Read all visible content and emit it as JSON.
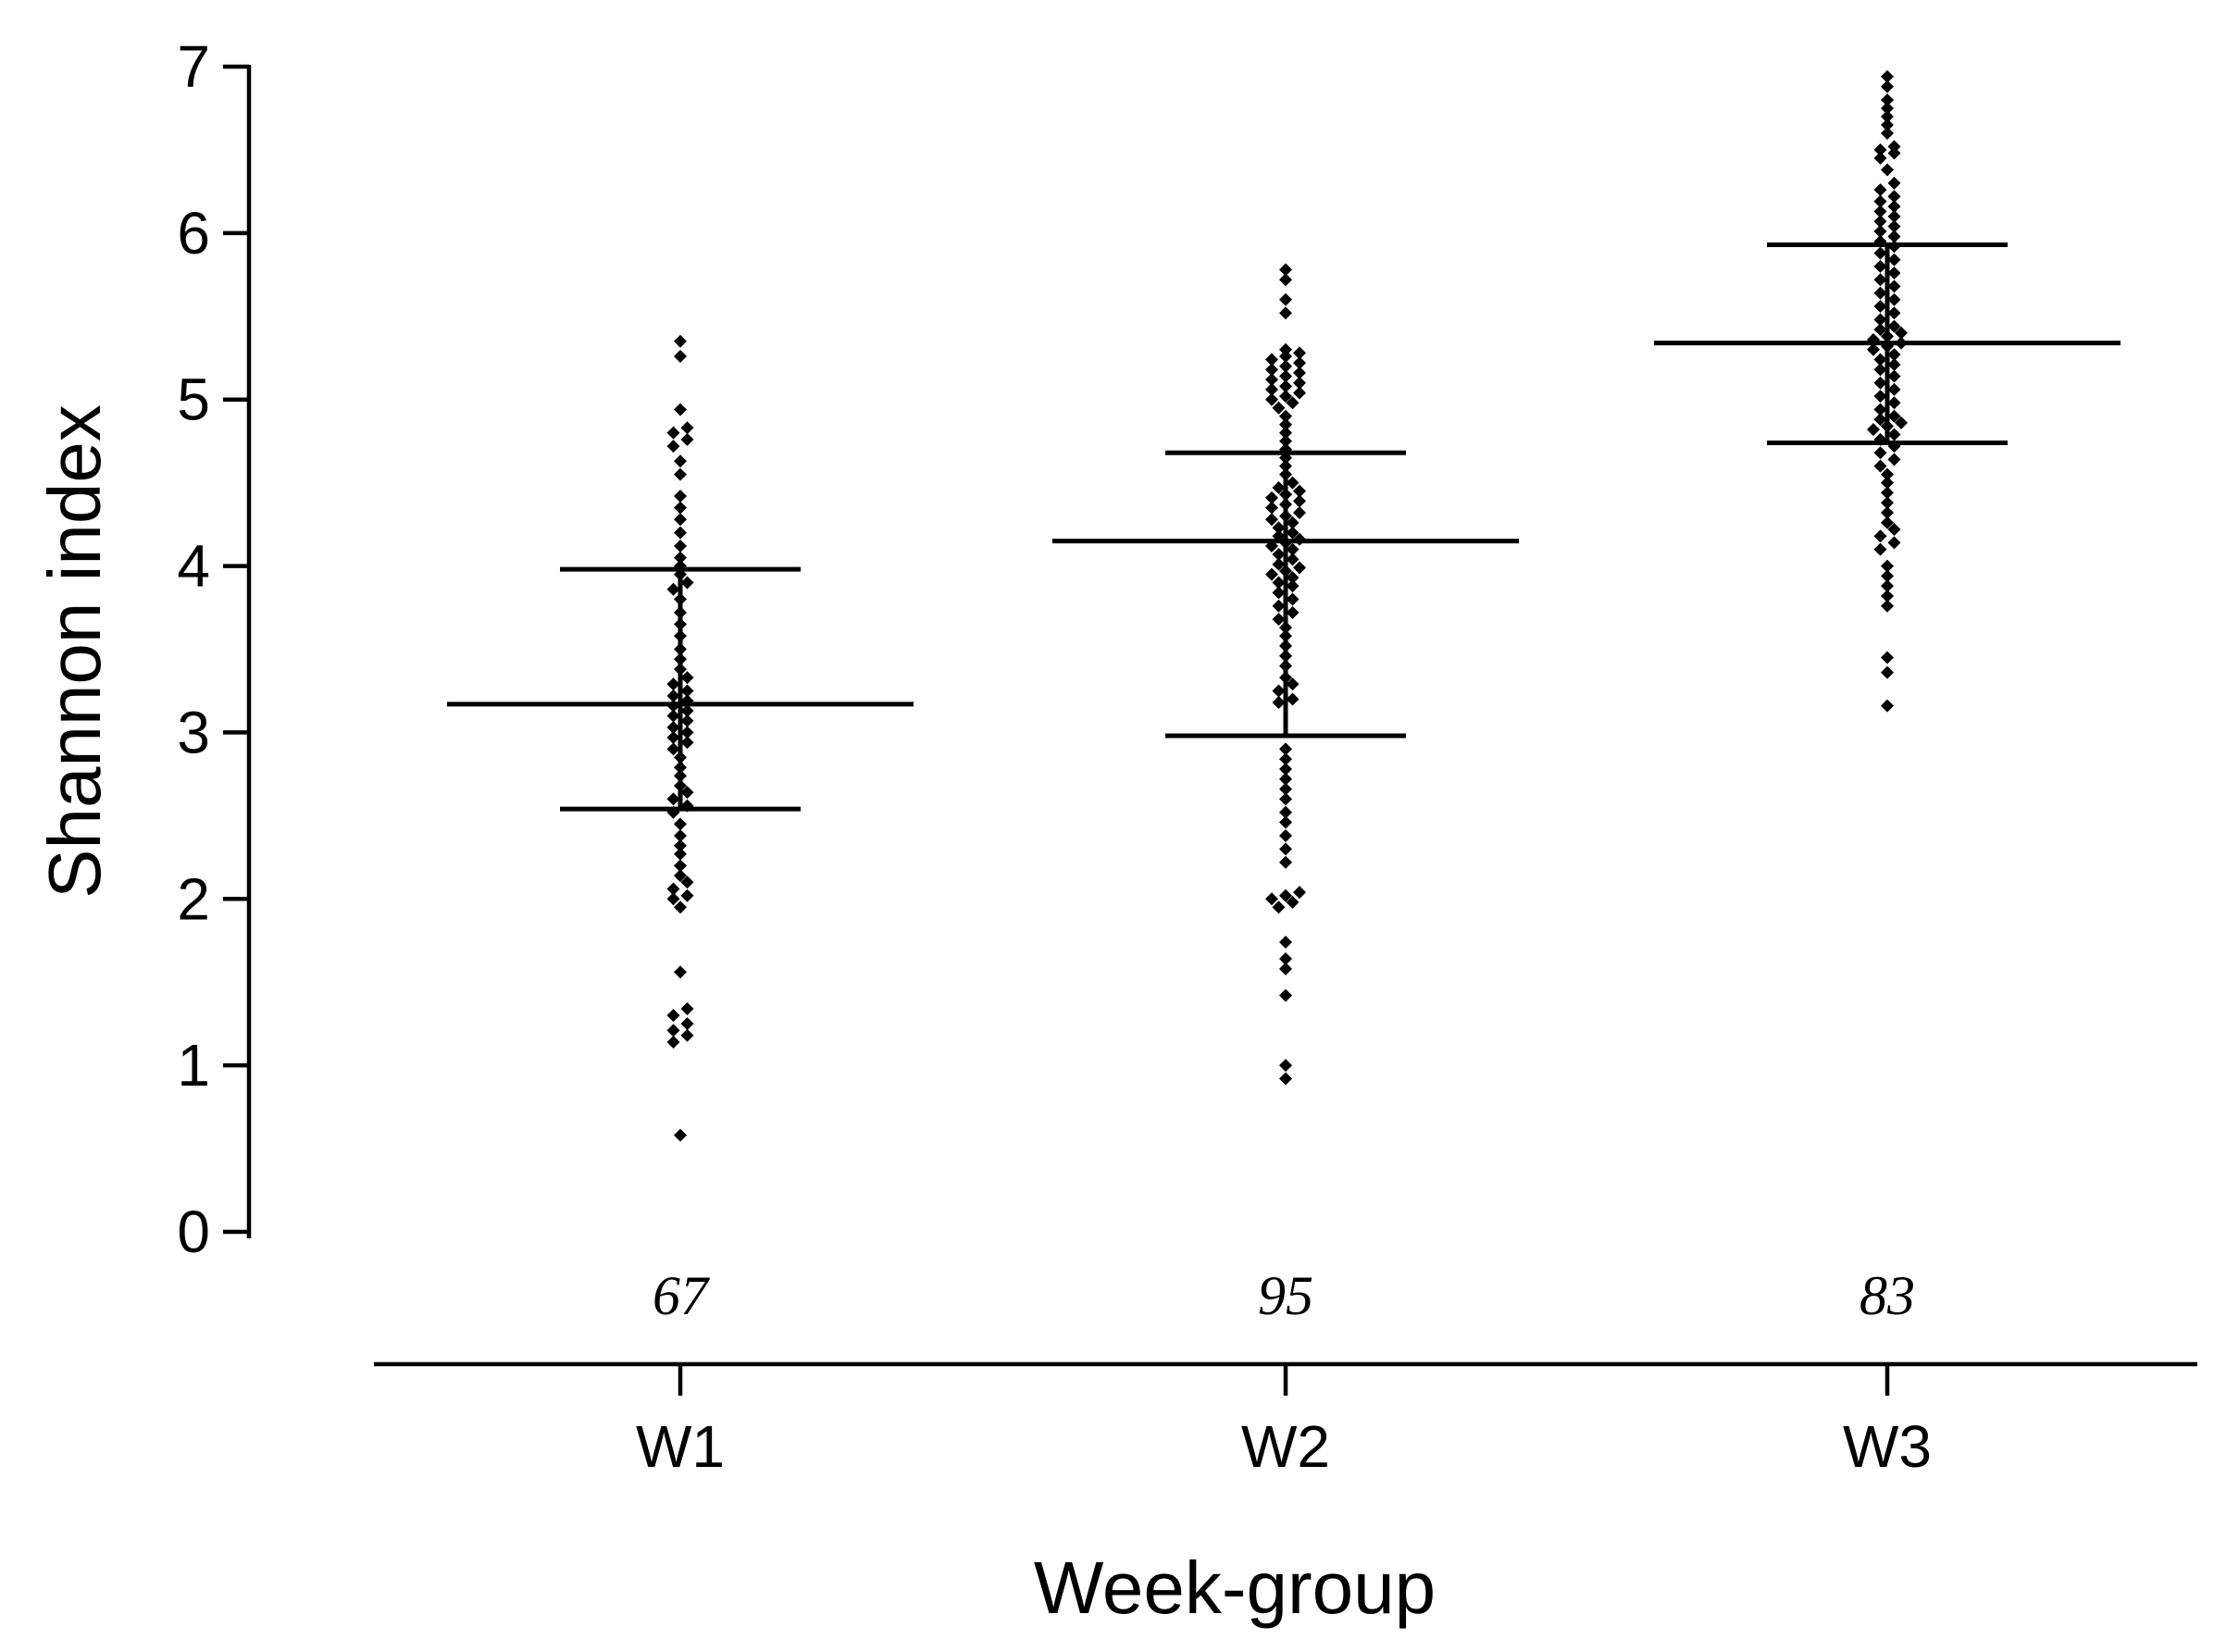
{
  "chart_data": {
    "type": "scatter",
    "subtype": "dot-plot-with-mean-sd",
    "title": "",
    "xlabel": "Week-group",
    "ylabel": "Shannon index",
    "ylim": [
      0,
      7
    ],
    "yticks": [
      0,
      1,
      2,
      3,
      4,
      5,
      6,
      7
    ],
    "categories": [
      "W1",
      "W2",
      "W3"
    ],
    "groups": [
      {
        "name": "W1",
        "n": "67",
        "mean": 3.17,
        "sd_low": 2.54,
        "sd_high": 3.98,
        "values": [
          0.58,
          1.14,
          1.18,
          1.21,
          1.25,
          1.3,
          1.34,
          1.56,
          1.95,
          2.0,
          2.02,
          2.06,
          2.1,
          2.14,
          2.2,
          2.27,
          2.32,
          2.38,
          2.45,
          2.52,
          2.56,
          2.6,
          2.64,
          2.68,
          2.74,
          2.79,
          2.85,
          2.9,
          2.94,
          2.97,
          3.0,
          3.03,
          3.07,
          3.1,
          3.13,
          3.16,
          3.19,
          3.22,
          3.25,
          3.29,
          3.33,
          3.38,
          3.44,
          3.5,
          3.58,
          3.65,
          3.72,
          3.8,
          3.86,
          3.9,
          3.95,
          4.0,
          4.05,
          4.12,
          4.2,
          4.28,
          4.35,
          4.42,
          4.55,
          4.63,
          4.72,
          4.76,
          4.8,
          4.83,
          4.94,
          5.26,
          5.35
        ]
      },
      {
        "name": "W2",
        "n": "95",
        "mean": 4.15,
        "sd_low": 2.98,
        "sd_high": 4.68,
        "values": [
          0.92,
          1.0,
          1.42,
          1.58,
          1.64,
          1.74,
          1.95,
          1.98,
          2.0,
          2.02,
          2.04,
          2.22,
          2.3,
          2.38,
          2.46,
          2.52,
          2.6,
          2.66,
          2.72,
          2.78,
          2.84,
          2.9,
          3.18,
          3.2,
          3.25,
          3.29,
          3.33,
          3.4,
          3.46,
          3.52,
          3.58,
          3.63,
          3.68,
          3.72,
          3.76,
          3.8,
          3.84,
          3.88,
          3.9,
          3.93,
          3.95,
          3.97,
          3.99,
          4.01,
          4.04,
          4.07,
          4.1,
          4.12,
          4.14,
          4.16,
          4.18,
          4.2,
          4.23,
          4.26,
          4.28,
          4.3,
          4.32,
          4.35,
          4.37,
          4.39,
          4.41,
          4.43,
          4.45,
          4.47,
          4.5,
          4.55,
          4.6,
          4.65,
          4.7,
          4.75,
          4.8,
          4.85,
          4.9,
          4.95,
          4.98,
          5.0,
          5.02,
          5.04,
          5.06,
          5.08,
          5.1,
          5.12,
          5.14,
          5.16,
          5.18,
          5.2,
          5.22,
          5.24,
          5.26,
          5.28,
          5.3,
          5.52,
          5.6,
          5.72,
          5.78
        ]
      },
      {
        "name": "W3",
        "n": "83",
        "mean": 5.34,
        "sd_low": 4.74,
        "sd_high": 5.93,
        "values": [
          3.16,
          3.36,
          3.45,
          3.76,
          3.82,
          3.88,
          3.94,
          4.0,
          4.1,
          4.14,
          4.18,
          4.22,
          4.26,
          4.32,
          4.38,
          4.44,
          4.5,
          4.55,
          4.6,
          4.64,
          4.68,
          4.72,
          4.76,
          4.79,
          4.82,
          4.84,
          4.86,
          4.88,
          4.9,
          4.94,
          4.98,
          5.02,
          5.06,
          5.1,
          5.14,
          5.18,
          5.21,
          5.24,
          5.27,
          5.3,
          5.32,
          5.34,
          5.36,
          5.38,
          5.4,
          5.42,
          5.44,
          5.48,
          5.52,
          5.56,
          5.6,
          5.64,
          5.68,
          5.72,
          5.76,
          5.8,
          5.84,
          5.88,
          5.92,
          5.95,
          5.98,
          6.01,
          6.04,
          6.07,
          6.1,
          6.13,
          6.16,
          6.19,
          6.22,
          6.26,
          6.3,
          6.38,
          6.45,
          6.48,
          6.5,
          6.52,
          6.6,
          6.65,
          6.7,
          6.75,
          6.8,
          6.88,
          6.94
        ]
      }
    ],
    "grid": false,
    "legend": "none"
  }
}
